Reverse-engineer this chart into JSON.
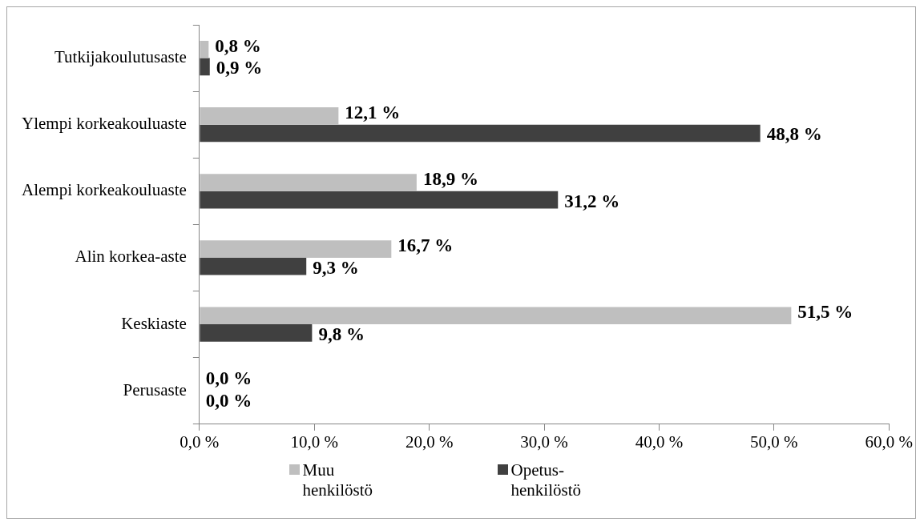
{
  "chart_data": {
    "type": "bar",
    "orientation": "horizontal",
    "categories": [
      "Tutkijakoulutusaste",
      "Ylempi korkeakouluaste",
      "Alempi korkeakouluaste",
      "Alin korkea-aste",
      "Keskiaste",
      "Perusaste"
    ],
    "series": [
      {
        "name": "Muu henkilöstö",
        "color": "#bfbfbf",
        "values": [
          0.8,
          12.1,
          18.9,
          16.7,
          51.5,
          0.0
        ],
        "value_labels": [
          "0,8 %",
          "12,1 %",
          "18,9 %",
          "16,7 %",
          "51,5 %",
          "0,0 %"
        ]
      },
      {
        "name": "Opetus-henkilöstö",
        "color": "#404040",
        "values": [
          0.9,
          48.8,
          31.2,
          9.3,
          9.8,
          0.0
        ],
        "value_labels": [
          "0,9 %",
          "48,8 %",
          "31,2 %",
          "9,3 %",
          "9,8 %",
          "0,0 %"
        ]
      }
    ],
    "xlim": [
      0,
      60
    ],
    "xticks": [
      {
        "value": 0,
        "label": "0,0 %"
      },
      {
        "value": 10,
        "label": "10,0 %"
      },
      {
        "value": 20,
        "label": "20,0 %"
      },
      {
        "value": 30,
        "label": "30,0 %"
      },
      {
        "value": 40,
        "label": "40,0 %"
      },
      {
        "value": 50,
        "label": "50,0 %"
      },
      {
        "value": 60,
        "label": "60,0 %"
      }
    ],
    "grid": false,
    "legend": "bottom"
  }
}
